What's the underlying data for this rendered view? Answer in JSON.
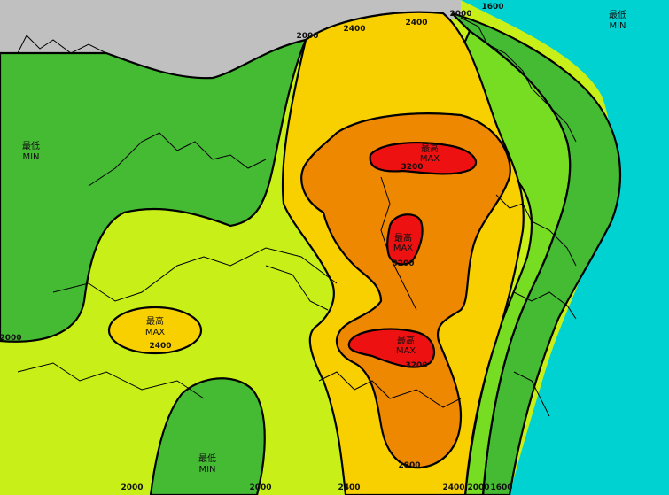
{
  "colors": {
    "sea": "#00D2D2",
    "land_out_of_range": "#C0C0C0",
    "band_min": "#44BB33",
    "band_low": "#77DD22",
    "band_mid": "#C8F018",
    "band_2400": "#F8D000",
    "band_2800": "#EE8800",
    "band_max": "#EE1111"
  },
  "labels": {
    "min_left": {
      "zh": "最低",
      "en": "MIN"
    },
    "min_bottom": {
      "zh": "最低",
      "en": "MIN"
    },
    "min_top_right": {
      "zh": "最低",
      "en": "MIN"
    },
    "max_top": {
      "zh": "最高",
      "en": "MAX"
    },
    "max_middle": {
      "zh": "最高",
      "en": "MAX"
    },
    "max_lower": {
      "zh": "最高",
      "en": "MAX"
    },
    "max_west": {
      "zh": "最高",
      "en": "MAX"
    }
  },
  "contour_values": {
    "top_2000": "2000",
    "top_2400_a": "2400",
    "top_2400_b": "2400",
    "top_2000_b": "2000",
    "top_1600": "1600",
    "left_2000": "2000",
    "west_2400": "2400",
    "max_top_3200": "3200",
    "max_mid_3200": "3200",
    "max_low_3200": "3200",
    "south_2800": "2800",
    "bottom_2000_a": "2000",
    "bottom_2000_b": "2000",
    "bottom_2400_a": "2400",
    "bottom_2400_b": "2400",
    "bottom_2000_c": "2000",
    "bottom_1600": "1600"
  }
}
